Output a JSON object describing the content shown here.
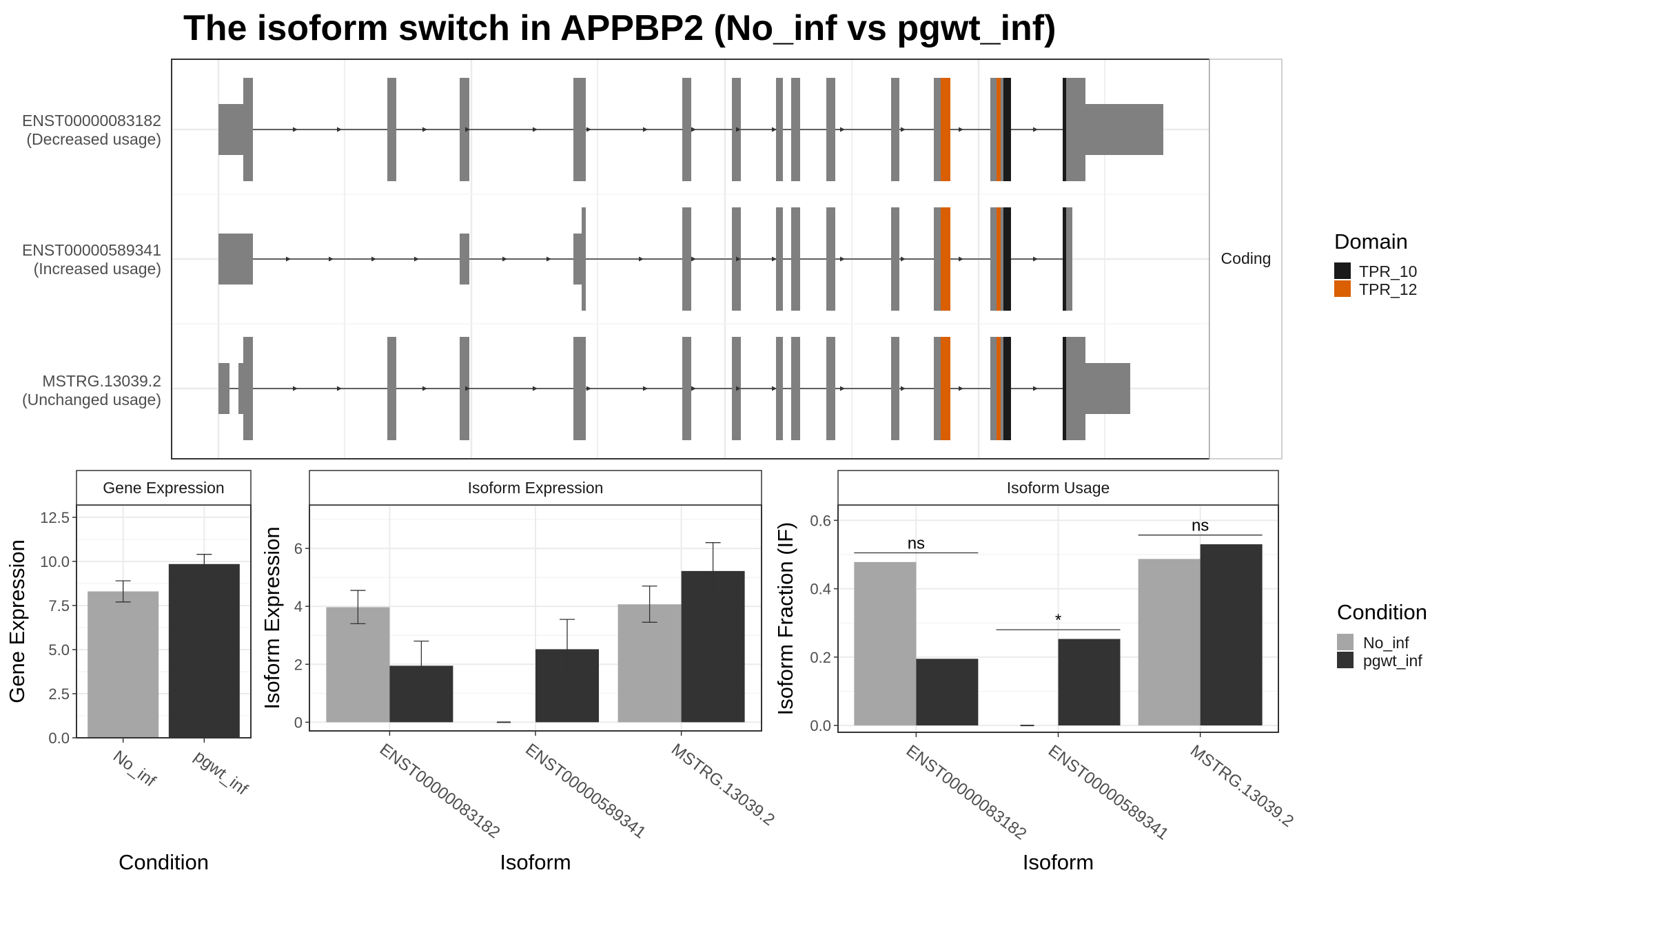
{
  "title": "The isoform switch in APPBP2 (No_inf vs pgwt_inf)",
  "colors": {
    "exon": "#808080",
    "tpr10": "#1a1a1a",
    "tpr12": "#d95f02",
    "no_inf": "#a6a6a6",
    "pgwt_inf": "#333333",
    "grid": "#ebebeb",
    "strip_border": "#bfbfbf"
  },
  "transcript_panel": {
    "strip_label": "Coding",
    "isoforms": [
      {
        "id": "ENST00000083182",
        "usage": "(Decreased usage)"
      },
      {
        "id": "ENST00000589341",
        "usage": "(Increased usage)"
      },
      {
        "id": "MSTRG.13039.2",
        "usage": "(Unchanged usage)"
      }
    ]
  },
  "legends": {
    "domain": {
      "title": "Domain",
      "items": [
        {
          "label": "TPR_10",
          "color": "#1a1a1a"
        },
        {
          "label": "TPR_12",
          "color": "#d95f02"
        }
      ]
    },
    "condition": {
      "title": "Condition",
      "items": [
        {
          "label": "No_inf",
          "color": "#a6a6a6"
        },
        {
          "label": "pgwt_inf",
          "color": "#333333"
        }
      ]
    }
  },
  "chart_data": [
    {
      "type": "bar",
      "title": "Gene Expression",
      "xlabel": "Condition",
      "ylabel": "Gene Expression",
      "categories": [
        "No_inf",
        "pgwt_inf"
      ],
      "values": [
        8.3,
        9.85
      ],
      "error_low": [
        7.7,
        9.3
      ],
      "error_high": [
        8.9,
        10.4
      ],
      "ylim": [
        0,
        13.2
      ],
      "yticks": [
        "0.0",
        "2.5",
        "5.0",
        "7.5",
        "10.0",
        "12.5"
      ]
    },
    {
      "type": "bar",
      "title": "Isoform Expression",
      "xlabel": "Isoform",
      "ylabel": "Isoform Expression",
      "categories": [
        "ENST00000083182",
        "ENST00000589341",
        "MSTRG.13039.2"
      ],
      "series": [
        {
          "name": "No_inf",
          "values": [
            3.97,
            0.0,
            4.07
          ],
          "error_low": [
            3.4,
            0.0,
            3.45
          ],
          "error_high": [
            4.55,
            0.0,
            4.7
          ]
        },
        {
          "name": "pgwt_inf",
          "values": [
            1.95,
            2.52,
            5.22
          ],
          "error_low": [
            1.1,
            1.5,
            4.25
          ],
          "error_high": [
            2.8,
            3.55,
            6.2
          ]
        }
      ],
      "ylim": [
        -0.3,
        7.5
      ],
      "yticks": [
        "0",
        "2",
        "4",
        "6"
      ]
    },
    {
      "type": "bar",
      "title": "Isoform Usage",
      "xlabel": "Isoform",
      "ylabel": "Isoform Fraction (IF)",
      "categories": [
        "ENST00000083182",
        "ENST00000589341",
        "MSTRG.13039.2"
      ],
      "series": [
        {
          "name": "No_inf",
          "values": [
            0.478,
            0.0,
            0.487
          ]
        },
        {
          "name": "pgwt_inf",
          "values": [
            0.195,
            0.253,
            0.53
          ]
        }
      ],
      "significance": [
        {
          "category": "ENST00000083182",
          "label": "ns",
          "y": 0.505
        },
        {
          "category": "ENST00000589341",
          "label": "*",
          "y": 0.28
        },
        {
          "category": "MSTRG.13039.2",
          "label": "ns",
          "y": 0.557
        }
      ],
      "ylim": [
        -0.02,
        0.645
      ],
      "yticks": [
        "0.0",
        "0.2",
        "0.4",
        "0.6"
      ]
    }
  ]
}
